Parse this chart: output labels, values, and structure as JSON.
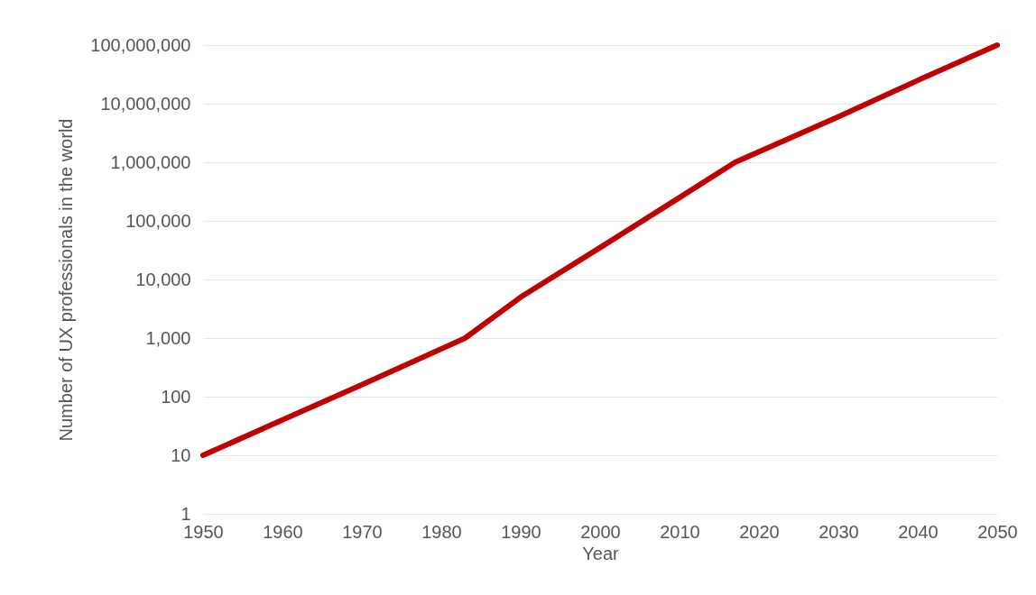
{
  "chart_data": {
    "type": "line",
    "xlabel": "Year",
    "ylabel": "Number of UX professionals in the world",
    "x": [
      1950,
      1960,
      1970,
      1983,
      1990,
      2000,
      2010,
      2017,
      2030,
      2040,
      2050
    ],
    "series": [
      {
        "color": "#c00000",
        "values": [
          10,
          40,
          160,
          1000,
          5000,
          35000,
          250000,
          1000000,
          6000000,
          25000000,
          100000000
        ]
      }
    ],
    "xlim": [
      1950,
      2050
    ],
    "xticks": [
      1950,
      1960,
      1970,
      1980,
      1990,
      2000,
      2010,
      2020,
      2030,
      2040,
      2050
    ],
    "ylim": [
      1,
      100000000
    ],
    "yticks": [
      {
        "value": 1,
        "label": "1"
      },
      {
        "value": 10,
        "label": "10"
      },
      {
        "value": 100,
        "label": "100"
      },
      {
        "value": 1000,
        "label": "1,000"
      },
      {
        "value": 10000,
        "label": "10,000"
      },
      {
        "value": 100000,
        "label": "100,000"
      },
      {
        "value": 1000000,
        "label": "1,000,000"
      },
      {
        "value": 10000000,
        "label": "10,000,000"
      },
      {
        "value": 100000000,
        "label": "100,000,000"
      }
    ],
    "log": "y",
    "grid": "y",
    "marker": "none",
    "line_style": "solid"
  }
}
